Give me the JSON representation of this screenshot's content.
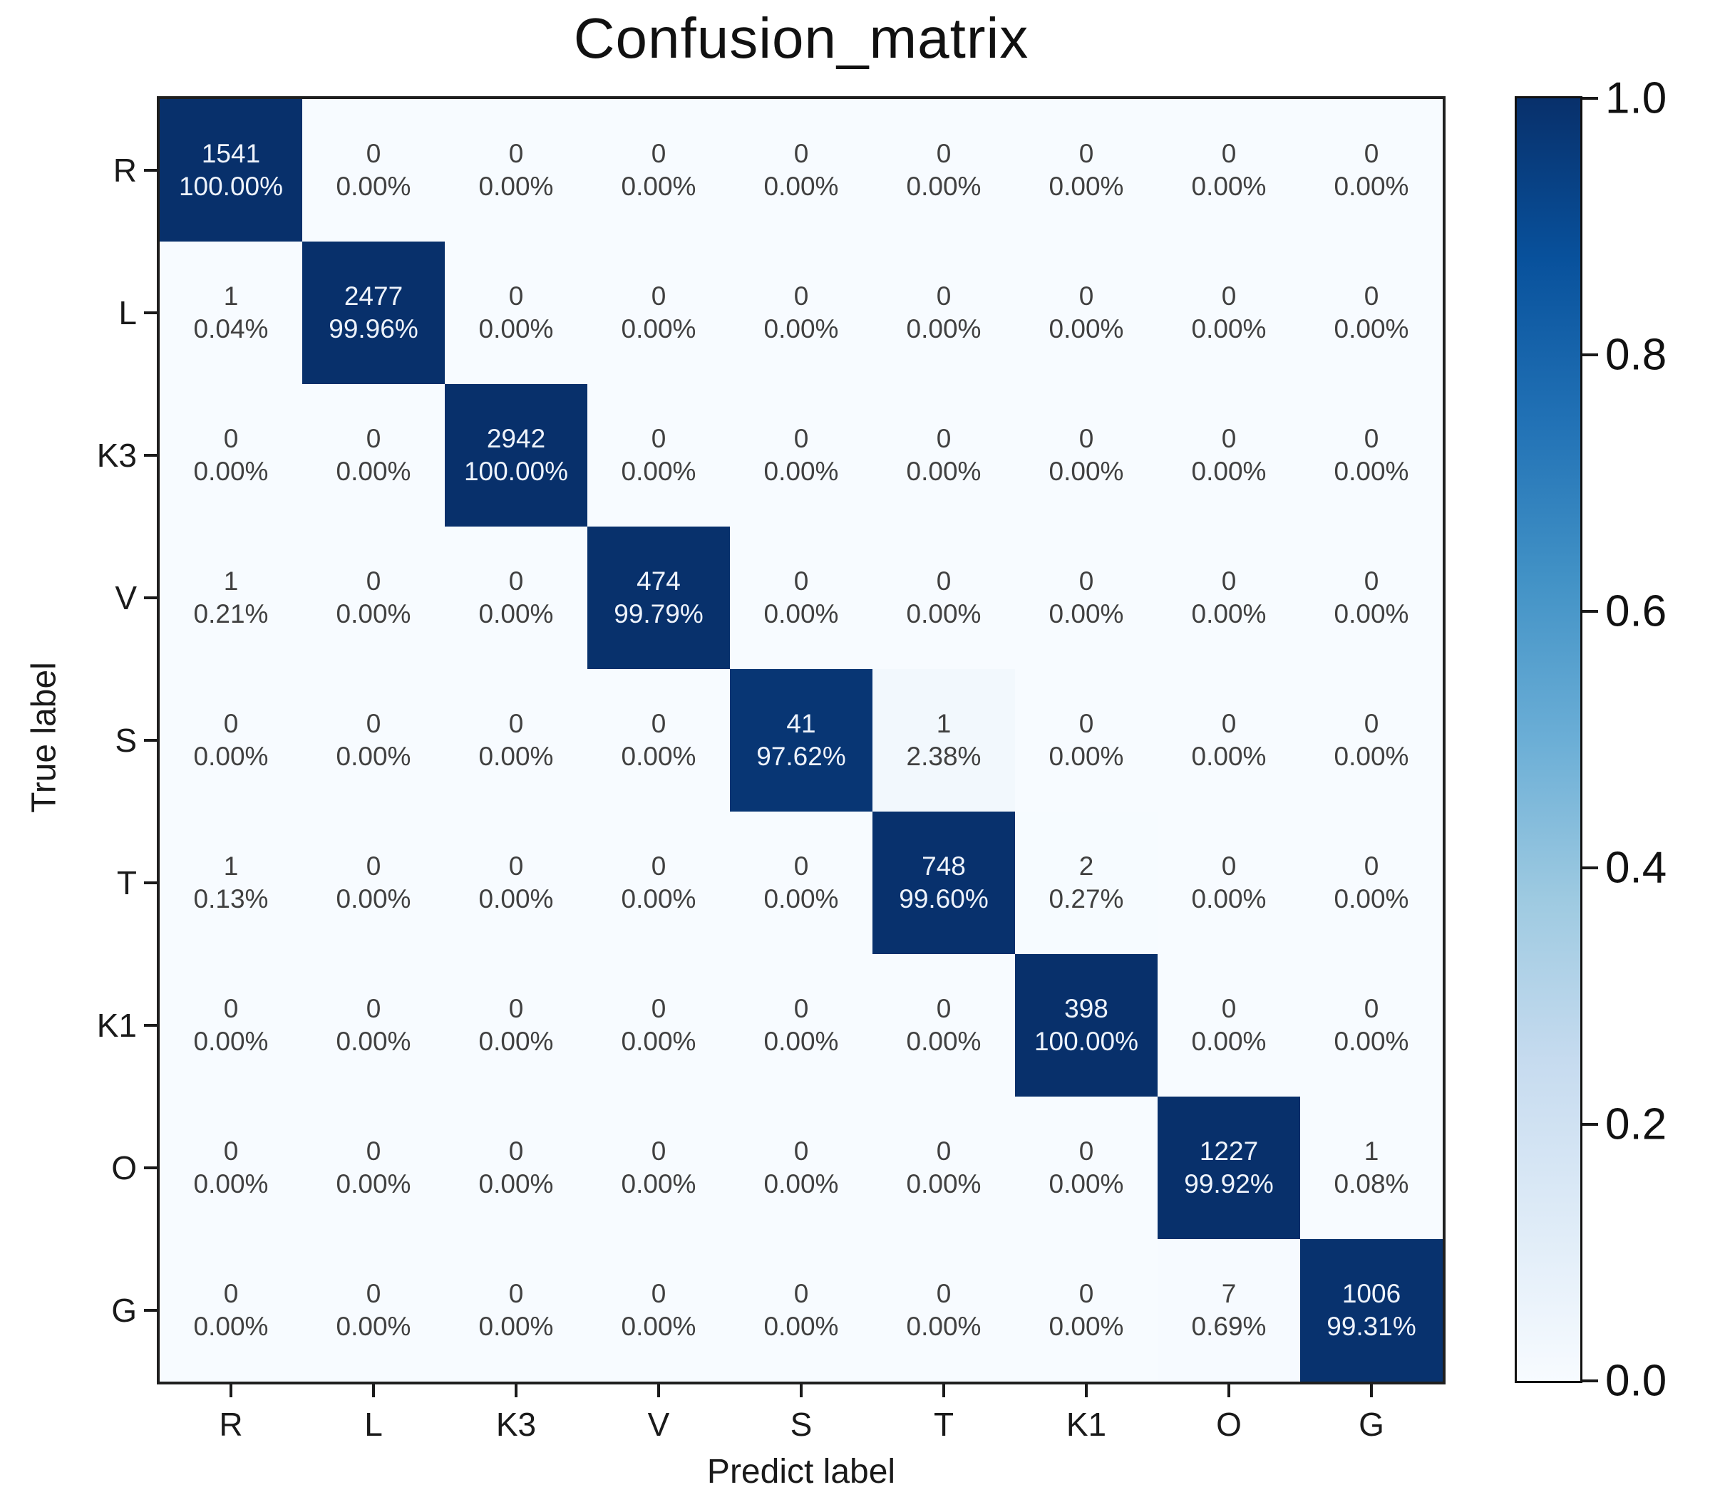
{
  "figure": {
    "title": "Confusion_matrix",
    "x_axis_label": "Predict label",
    "y_axis_label": "True label"
  },
  "chart_data": {
    "type": "heatmap",
    "title": "Confusion_matrix",
    "xlabel": "Predict label",
    "ylabel": "True label",
    "x_tick_labels": [
      "R",
      "L",
      "K3",
      "V",
      "S",
      "T",
      "K1",
      "O",
      "G"
    ],
    "y_tick_labels": [
      "R",
      "L",
      "K3",
      "V",
      "S",
      "T",
      "K1",
      "O",
      "G"
    ],
    "cell_counts": [
      [
        1541,
        0,
        0,
        0,
        0,
        0,
        0,
        0,
        0
      ],
      [
        1,
        2477,
        0,
        0,
        0,
        0,
        0,
        0,
        0
      ],
      [
        0,
        0,
        2942,
        0,
        0,
        0,
        0,
        0,
        0
      ],
      [
        1,
        0,
        0,
        474,
        0,
        0,
        0,
        0,
        0
      ],
      [
        0,
        0,
        0,
        0,
        41,
        1,
        0,
        0,
        0
      ],
      [
        1,
        0,
        0,
        0,
        0,
        748,
        2,
        0,
        0
      ],
      [
        0,
        0,
        0,
        0,
        0,
        0,
        398,
        0,
        0
      ],
      [
        0,
        0,
        0,
        0,
        0,
        0,
        0,
        1227,
        1
      ],
      [
        0,
        0,
        0,
        0,
        0,
        0,
        0,
        7,
        1006
      ]
    ],
    "cell_percents": [
      [
        "100.00%",
        "0.00%",
        "0.00%",
        "0.00%",
        "0.00%",
        "0.00%",
        "0.00%",
        "0.00%",
        "0.00%"
      ],
      [
        "0.04%",
        "99.96%",
        "0.00%",
        "0.00%",
        "0.00%",
        "0.00%",
        "0.00%",
        "0.00%",
        "0.00%"
      ],
      [
        "0.00%",
        "0.00%",
        "100.00%",
        "0.00%",
        "0.00%",
        "0.00%",
        "0.00%",
        "0.00%",
        "0.00%"
      ],
      [
        "0.21%",
        "0.00%",
        "0.00%",
        "99.79%",
        "0.00%",
        "0.00%",
        "0.00%",
        "0.00%",
        "0.00%"
      ],
      [
        "0.00%",
        "0.00%",
        "0.00%",
        "0.00%",
        "97.62%",
        "2.38%",
        "0.00%",
        "0.00%",
        "0.00%"
      ],
      [
        "0.13%",
        "0.00%",
        "0.00%",
        "0.00%",
        "0.00%",
        "99.60%",
        "0.27%",
        "0.00%",
        "0.00%"
      ],
      [
        "0.00%",
        "0.00%",
        "0.00%",
        "0.00%",
        "0.00%",
        "0.00%",
        "100.00%",
        "0.00%",
        "0.00%"
      ],
      [
        "0.00%",
        "0.00%",
        "0.00%",
        "0.00%",
        "0.00%",
        "0.00%",
        "0.00%",
        "99.92%",
        "0.08%"
      ],
      [
        "0.00%",
        "0.00%",
        "0.00%",
        "0.00%",
        "0.00%",
        "0.00%",
        "0.00%",
        "0.69%",
        "99.31%"
      ]
    ],
    "colorbar": {
      "tick_labels": [
        "1.0",
        "0.8",
        "0.6",
        "0.4",
        "0.2",
        "0.0"
      ],
      "vmin": 0.0,
      "vmax": 1.0,
      "colormap": "Blues"
    },
    "colors": {
      "high": "#08306b",
      "low": "#f7fbff",
      "cell_text_dark": "#404040",
      "cell_text_light": "#eef3fb",
      "axis": "#1a1a1a"
    },
    "grid": false,
    "legend_position": "none"
  }
}
